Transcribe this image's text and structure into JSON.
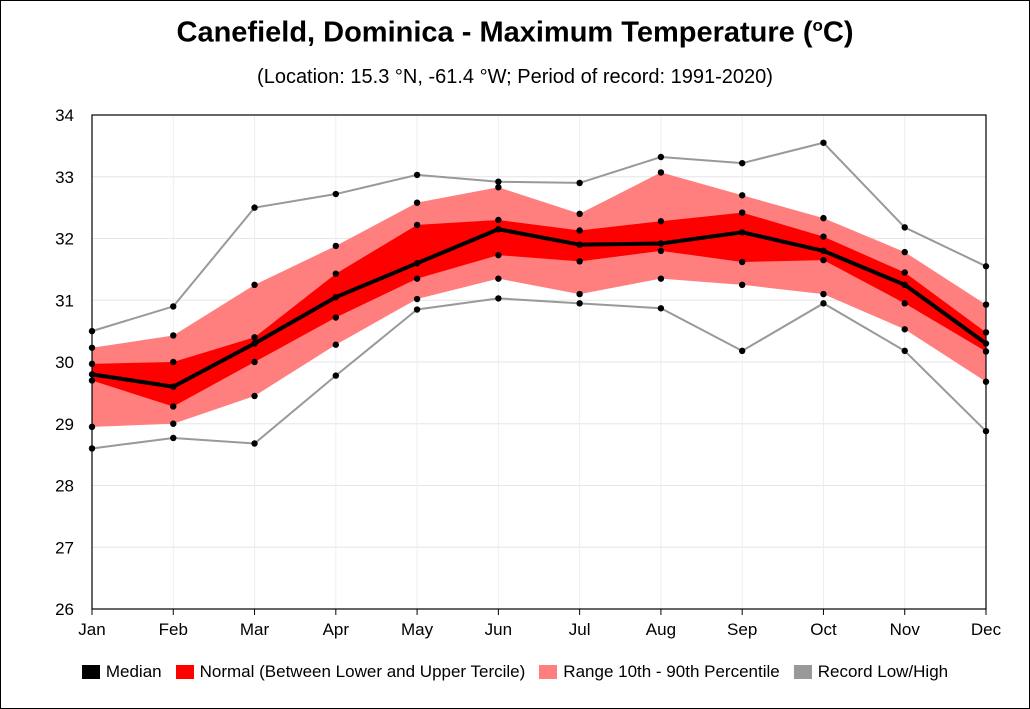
{
  "title_main": "Canefield, Dominica - Maximum Temperature (",
  "title_sup": "o",
  "title_end": "C)",
  "subtitle": "(Location: 15.3 °N, -61.4 °W; Period of record: 1991-2020)",
  "colors": {
    "median": "#000000",
    "normal": "#ff0000",
    "range": "#ff7f7f",
    "record": "#999999"
  },
  "chart_data": {
    "type": "line",
    "categories": [
      "Jan",
      "Feb",
      "Mar",
      "Apr",
      "May",
      "Jun",
      "Jul",
      "Aug",
      "Sep",
      "Oct",
      "Nov",
      "Dec"
    ],
    "ylim": [
      26,
      34
    ],
    "yticks": [
      "26",
      "27",
      "28",
      "29",
      "30",
      "31",
      "32",
      "33",
      "34"
    ],
    "grid": true,
    "legend_position": "bottom",
    "series": [
      {
        "name": "Median",
        "key": "median",
        "values": [
          29.8,
          29.6,
          30.3,
          31.05,
          31.6,
          32.15,
          31.9,
          31.92,
          32.1,
          31.8,
          31.25,
          30.3
        ]
      },
      {
        "name": "Normal (Between Lower and Upper Tercile)",
        "key": "normal",
        "lower": [
          29.7,
          29.28,
          30.0,
          30.72,
          31.35,
          31.73,
          31.63,
          31.8,
          31.62,
          31.65,
          30.95,
          30.17
        ],
        "upper": [
          29.97,
          30.0,
          30.4,
          31.43,
          32.22,
          32.3,
          32.13,
          32.28,
          32.42,
          32.03,
          31.45,
          30.48
        ]
      },
      {
        "name": "Range 10th - 90th Percentile",
        "key": "range",
        "lower": [
          28.95,
          29.0,
          29.45,
          30.28,
          31.02,
          31.35,
          31.1,
          31.35,
          31.25,
          31.1,
          30.53,
          29.68
        ],
        "upper": [
          30.23,
          30.43,
          31.25,
          31.88,
          32.58,
          32.83,
          32.4,
          33.07,
          32.7,
          32.33,
          31.78,
          30.93
        ]
      },
      {
        "name": "Record Low/High",
        "key": "record",
        "lower": [
          28.6,
          28.77,
          28.68,
          29.78,
          30.85,
          31.03,
          30.95,
          30.87,
          30.18,
          30.95,
          30.18,
          28.88
        ],
        "upper": [
          30.5,
          30.9,
          32.5,
          32.72,
          33.03,
          32.92,
          32.9,
          33.32,
          33.22,
          33.55,
          32.18,
          31.55
        ]
      }
    ]
  },
  "legend": [
    {
      "key": "median",
      "label": "Median"
    },
    {
      "key": "normal",
      "label": "Normal (Between Lower and Upper Tercile)"
    },
    {
      "key": "range",
      "label": "Range 10th - 90th Percentile"
    },
    {
      "key": "record",
      "label": "Record Low/High"
    }
  ]
}
